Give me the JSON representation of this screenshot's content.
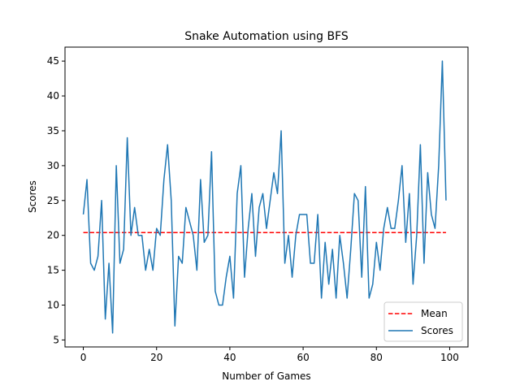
{
  "chart_data": {
    "type": "line",
    "title": "Snake Automation using BFS",
    "xlabel": "Number of Games",
    "ylabel": "Scores",
    "xlim": [
      -5,
      105
    ],
    "ylim": [
      4,
      47
    ],
    "xticks": [
      0,
      20,
      40,
      60,
      80,
      100
    ],
    "yticks": [
      5,
      10,
      15,
      20,
      25,
      30,
      35,
      40,
      45
    ],
    "grid": false,
    "legend_position": "lower-right",
    "colors": {
      "mean": "#ff0000",
      "scores": "#1f77b4"
    },
    "series": [
      {
        "name": "Scores",
        "style": "solid",
        "x": [
          0,
          1,
          2,
          3,
          4,
          5,
          6,
          7,
          8,
          9,
          10,
          11,
          12,
          13,
          14,
          15,
          16,
          17,
          18,
          19,
          20,
          21,
          22,
          23,
          24,
          25,
          26,
          27,
          28,
          29,
          30,
          31,
          32,
          33,
          34,
          35,
          36,
          37,
          38,
          39,
          40,
          41,
          42,
          43,
          44,
          45,
          46,
          47,
          48,
          49,
          50,
          51,
          52,
          53,
          54,
          55,
          56,
          57,
          58,
          59,
          60,
          61,
          62,
          63,
          64,
          65,
          66,
          67,
          68,
          69,
          70,
          71,
          72,
          73,
          74,
          75,
          76,
          77,
          78,
          79,
          80,
          81,
          82,
          83,
          84,
          85,
          86,
          87,
          88,
          89,
          90,
          91,
          92,
          93,
          94,
          95,
          96,
          97,
          98,
          99
        ],
        "values": [
          23,
          28,
          16,
          15,
          17,
          25,
          8,
          16,
          6,
          30,
          16,
          18,
          34,
          20,
          24,
          20,
          20,
          15,
          18,
          15,
          21,
          20,
          28,
          33,
          25,
          7,
          17,
          16,
          24,
          22,
          20,
          15,
          28,
          19,
          20,
          32,
          12,
          10,
          10,
          14,
          17,
          11,
          26,
          30,
          14,
          21,
          26,
          17,
          24,
          26,
          21,
          25,
          29,
          26,
          35,
          16,
          20,
          14,
          20,
          23,
          23,
          23,
          16,
          16,
          23,
          11,
          19,
          13,
          18,
          11,
          20,
          16,
          11,
          18,
          26,
          25,
          14,
          27,
          11,
          13,
          19,
          15,
          21,
          24,
          21,
          21,
          25,
          30,
          19,
          26,
          13,
          20,
          33,
          16,
          29,
          23,
          21,
          30,
          45,
          25
        ]
      },
      {
        "name": "Mean",
        "style": "dashed",
        "x": [
          0,
          99
        ],
        "values": [
          20.4,
          20.4
        ]
      }
    ]
  },
  "legend": [
    {
      "label": "Mean",
      "series": "Mean"
    },
    {
      "label": "Scores",
      "series": "Scores"
    }
  ]
}
